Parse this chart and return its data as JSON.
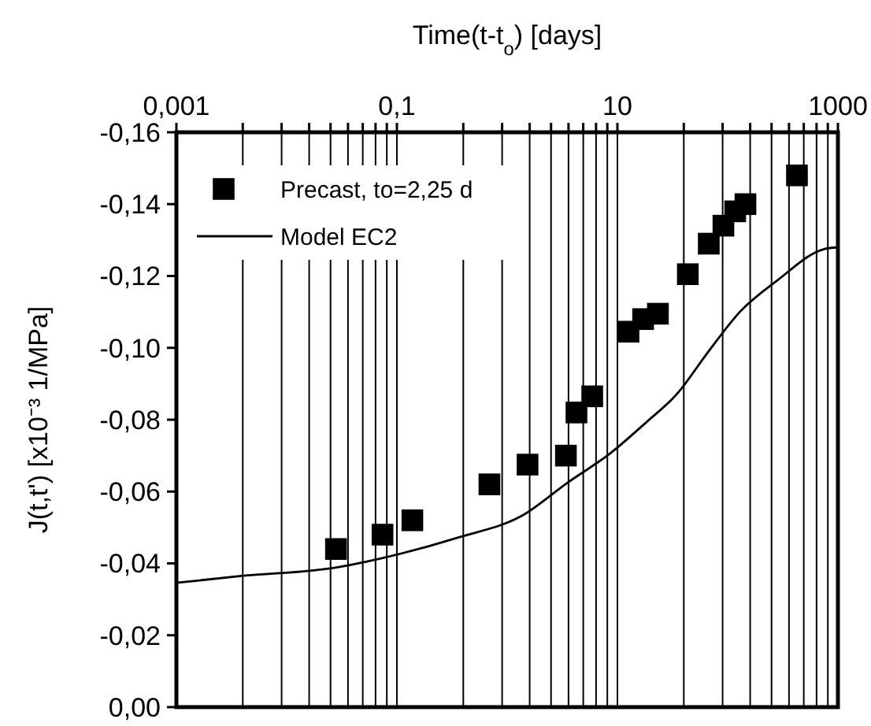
{
  "chart_data": {
    "type": "scatter",
    "xlabel": "Time(t-t$_{o}$) [days]",
    "ylabel": "J(t,t') [x10⁻³ 1/MPa]",
    "log": "x",
    "grid": "x",
    "legend": "top left",
    "xlim": [
      0.001,
      1000
    ],
    "xticks": [
      {
        "value": 0.001,
        "label": "0,001"
      },
      {
        "value": 0.004,
        "label": null
      },
      {
        "value": 0.009,
        "label": null
      },
      {
        "value": 0.016,
        "label": null
      },
      {
        "value": 0.025,
        "label": null
      },
      {
        "value": 0.036,
        "label": null
      },
      {
        "value": 0.049,
        "label": null
      },
      {
        "value": 0.064,
        "label": null
      },
      {
        "value": 0.081,
        "label": null
      },
      {
        "value": 0.1,
        "label": "0,1"
      },
      {
        "value": 0.4,
        "label": null
      },
      {
        "value": 0.9,
        "label": null
      },
      {
        "value": 1.6,
        "label": null
      },
      {
        "value": 2.5,
        "label": null
      },
      {
        "value": 3.6,
        "label": null
      },
      {
        "value": 4.9,
        "label": null
      },
      {
        "value": 6.4,
        "label": null
      },
      {
        "value": 8.1,
        "label": null
      },
      {
        "value": 10,
        "label": "10"
      },
      {
        "value": 40,
        "label": null
      },
      {
        "value": 90,
        "label": null
      },
      {
        "value": 160,
        "label": null
      },
      {
        "value": 250,
        "label": null
      },
      {
        "value": 360,
        "label": null
      },
      {
        "value": 490,
        "label": null
      },
      {
        "value": 640,
        "label": null
      },
      {
        "value": 810,
        "label": null
      },
      {
        "value": 1000,
        "label": "1000"
      }
    ],
    "ylim": [
      0,
      -0.16
    ],
    "yticks": [
      {
        "value": 0,
        "label": "0,00"
      },
      {
        "value": -0.02,
        "label": "-0,02"
      },
      {
        "value": -0.04,
        "label": "-0,04"
      },
      {
        "value": -0.06,
        "label": "-0,06"
      },
      {
        "value": -0.08,
        "label": "-0,08"
      },
      {
        "value": -0.1,
        "label": "-0,10"
      },
      {
        "value": -0.12,
        "label": "-0,12"
      },
      {
        "value": -0.14,
        "label": "-0,14"
      },
      {
        "value": -0.16,
        "label": "-0,16"
      }
    ],
    "series": [
      {
        "name": "Precast, to=2,25 d",
        "marker": "square",
        "color": "#000000",
        "x": [
          0.028,
          0.074,
          0.138,
          0.69,
          1.53,
          3.41,
          4.25,
          5.91,
          12.6,
          17.1,
          23.3,
          43.5,
          67.4,
          91.5,
          117,
          145,
          425
        ],
        "values": [
          -0.044,
          -0.048,
          -0.052,
          -0.062,
          -0.0675,
          -0.07,
          -0.082,
          -0.0865,
          -0.1045,
          -0.108,
          -0.1095,
          -0.1205,
          -0.129,
          -0.134,
          -0.138,
          -0.14,
          -0.148
        ]
      },
      {
        "name": "Model EC2",
        "type": "line",
        "marker": "none",
        "line_style": "solid",
        "color": "#000000",
        "x": [
          0.001,
          0.0039,
          0.0284,
          0.067,
          0.35,
          1.44,
          3.5,
          8.5,
          18.3,
          35,
          67,
          129,
          280,
          750,
          1000
        ],
        "values": [
          -0.0346,
          -0.0365,
          -0.0389,
          -0.0412,
          -0.0471,
          -0.0537,
          -0.0624,
          -0.0705,
          -0.0793,
          -0.0873,
          -0.099,
          -0.11,
          -0.1187,
          -0.1275,
          -0.128
        ]
      }
    ]
  }
}
